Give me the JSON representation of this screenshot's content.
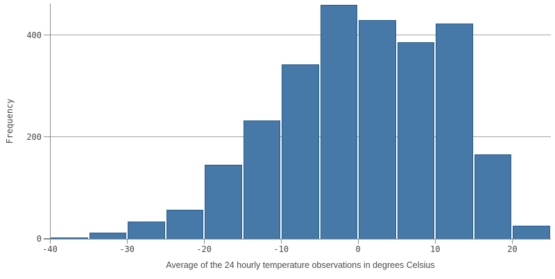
{
  "chart_data": {
    "type": "bar",
    "subtype": "histogram",
    "title": "",
    "xlabel": "Average of the 24 hourly temperature observations in degrees Celsius",
    "ylabel": "Frequency",
    "bin_width": 5,
    "bin_edges": [
      -40,
      -35,
      -30,
      -25,
      -20,
      -15,
      -10,
      -5,
      0,
      5,
      10,
      15,
      20,
      25
    ],
    "values": [
      2,
      12,
      34,
      57,
      146,
      233,
      343,
      460,
      430,
      387,
      424,
      166,
      26
    ],
    "xlim": [
      -40,
      25
    ],
    "ylim": [
      0,
      463
    ],
    "x_tick_values": [
      -40,
      -30,
      -20,
      -10,
      0,
      10,
      20
    ],
    "x_tick_labels": [
      "-40",
      "-30",
      "-20",
      "-10",
      "0",
      "10",
      "20"
    ],
    "y_tick_values": [
      0,
      200,
      400
    ],
    "y_tick_labels": [
      "0",
      "200",
      "400"
    ],
    "grid": true,
    "gridline_values": [
      200,
      400
    ],
    "legend": null,
    "colors": {
      "bar_fill": "#4678a8",
      "bar_border": "#275b89",
      "axis_line": "#8c8c8c",
      "gridline": "#a3a3a3",
      "tick_text": "#454545",
      "axis_title_text": "#4a4a4a",
      "background": "#ffffff"
    }
  }
}
